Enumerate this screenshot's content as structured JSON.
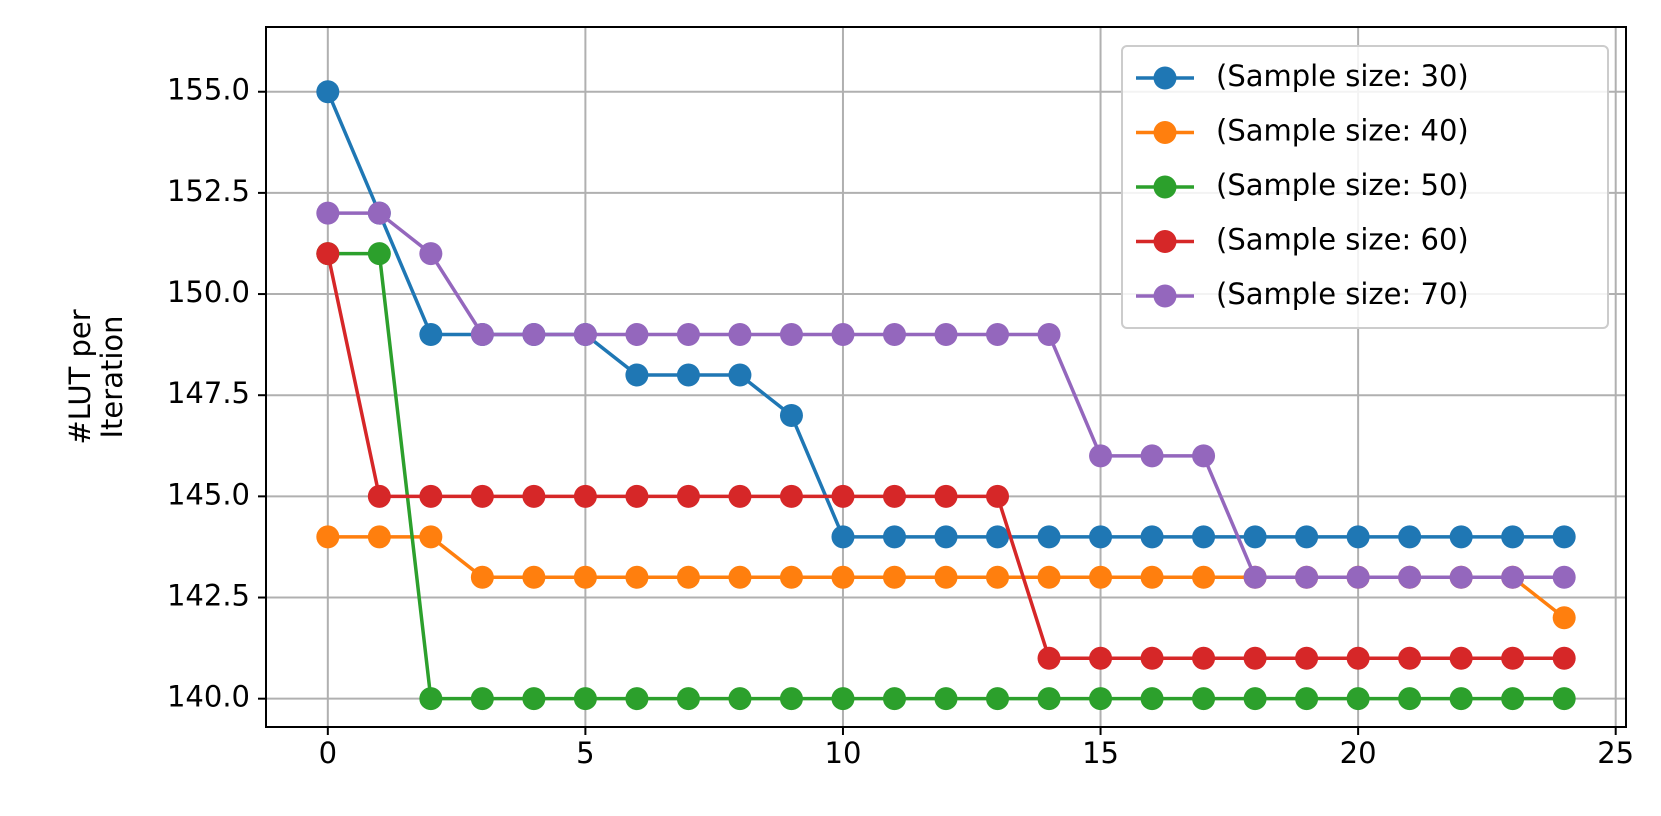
{
  "chart_data": {
    "type": "line",
    "title": "",
    "xlabel": "",
    "ylabel": [
      "#LUT per",
      "Iteration"
    ],
    "xlim": [
      -1.2,
      25.2
    ],
    "ylim": [
      139.3,
      156.6
    ],
    "xticks": [
      0,
      5,
      10,
      15,
      20,
      25
    ],
    "xtick_labels": [
      "0",
      "5",
      "10",
      "15",
      "20",
      "25"
    ],
    "yticks": [
      140.0,
      142.5,
      145.0,
      147.5,
      150.0,
      152.5,
      155.0
    ],
    "ytick_labels": [
      "140.0",
      "142.5",
      "145.0",
      "147.5",
      "150.0",
      "152.5",
      "155.0"
    ],
    "grid": true,
    "legend_position": "top-right",
    "x": [
      0,
      1,
      2,
      3,
      4,
      5,
      6,
      7,
      8,
      9,
      10,
      11,
      12,
      13,
      14,
      15,
      16,
      17,
      18,
      19,
      20,
      21,
      22,
      23,
      24
    ],
    "series": [
      {
        "name": "(Sample size: 30)",
        "color": "#1f77b4",
        "values": [
          155,
          152,
          149,
          149,
          149,
          149,
          148,
          148,
          148,
          147,
          144,
          144,
          144,
          144,
          144,
          144,
          144,
          144,
          144,
          144,
          144,
          144,
          144,
          144,
          144
        ]
      },
      {
        "name": "(Sample size: 40)",
        "color": "#ff7f0e",
        "values": [
          144,
          144,
          144,
          143,
          143,
          143,
          143,
          143,
          143,
          143,
          143,
          143,
          143,
          143,
          143,
          143,
          143,
          143,
          143,
          143,
          143,
          143,
          143,
          143,
          142
        ]
      },
      {
        "name": "(Sample size: 50)",
        "color": "#2ca02c",
        "values": [
          151,
          151,
          140,
          140,
          140,
          140,
          140,
          140,
          140,
          140,
          140,
          140,
          140,
          140,
          140,
          140,
          140,
          140,
          140,
          140,
          140,
          140,
          140,
          140,
          140
        ]
      },
      {
        "name": "(Sample size: 60)",
        "color": "#d62728",
        "values": [
          151,
          145,
          145,
          145,
          145,
          145,
          145,
          145,
          145,
          145,
          145,
          145,
          145,
          145,
          141,
          141,
          141,
          141,
          141,
          141,
          141,
          141,
          141,
          141,
          141
        ]
      },
      {
        "name": "(Sample size: 70)",
        "color": "#9467bd",
        "values": [
          152,
          152,
          151,
          149,
          149,
          149,
          149,
          149,
          149,
          149,
          149,
          149,
          149,
          149,
          149,
          146,
          146,
          146,
          143,
          143,
          143,
          143,
          143,
          143,
          143
        ]
      }
    ]
  }
}
